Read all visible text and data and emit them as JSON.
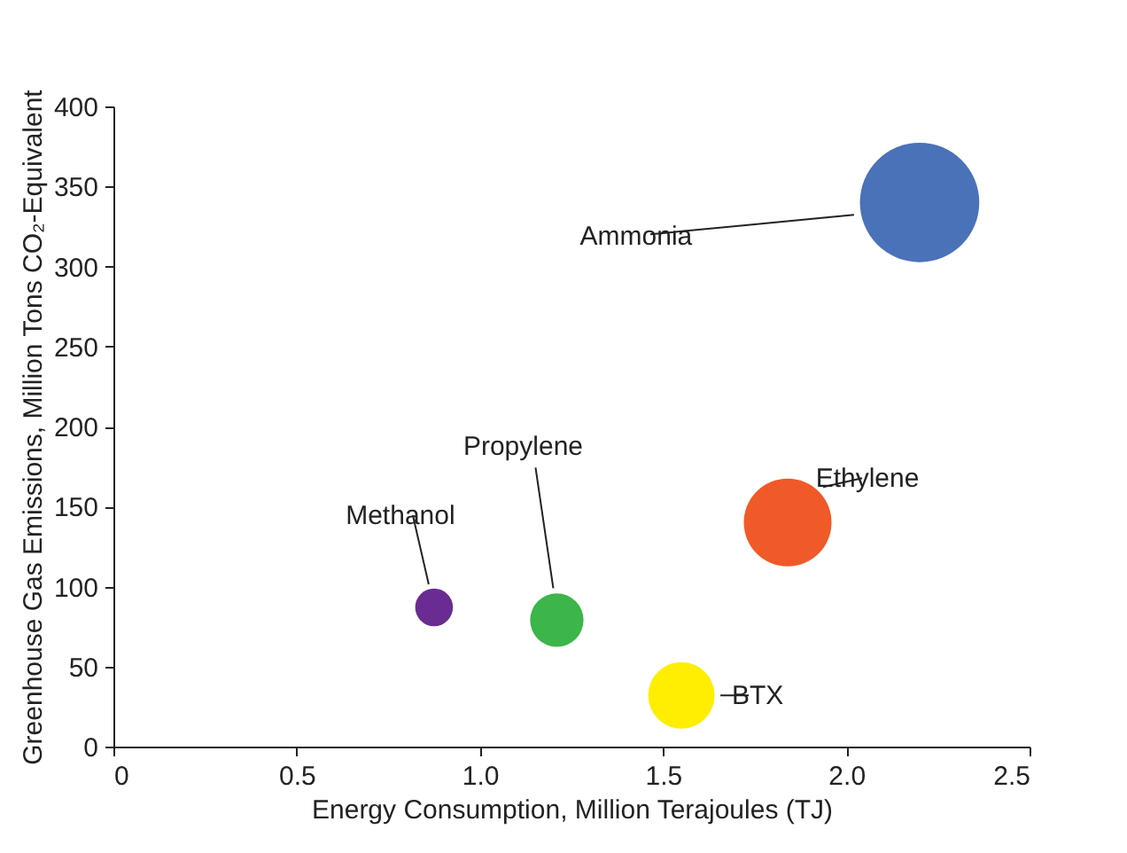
{
  "chart_data": {
    "type": "bubble",
    "xlabel": "Energy Consumption, Million Terajoules (TJ)",
    "ylabel": "Greenhouse Gas Emissions, Million Tons CO₂-Equivalent",
    "xlim": [
      0,
      2.5
    ],
    "xticks": [
      0,
      {
        "value": 0.5,
        "label": "0.5"
      },
      {
        "value": 1,
        "label": "1.0"
      },
      {
        "value": 1.5,
        "label": "1.5"
      },
      {
        "value": 2,
        "label": "2.0"
      },
      {
        "value": 2.5,
        "label": "2.5"
      }
    ],
    "ylim": [
      0,
      400
    ],
    "yticks": [
      0,
      50,
      100,
      150,
      200,
      250,
      300,
      350,
      400
    ],
    "grid": false,
    "series": [
      {
        "name": "Ammonia",
        "color": "#4a72b8",
        "x": [
          2.2
        ],
        "values": [
          340
        ],
        "sizes": [
          1
        ]
      },
      {
        "name": "Ethylene",
        "color": "#f05a28",
        "x": [
          1.84
        ],
        "values": [
          140
        ],
        "sizes": [
          0.54
        ]
      },
      {
        "name": "BTX",
        "color": "#ffee00",
        "x": [
          1.55
        ],
        "values": [
          32
        ],
        "sizes": [
          0.31
        ]
      },
      {
        "name": "Propylene",
        "color": "#3cb54a",
        "x": [
          1.21
        ],
        "values": [
          79
        ],
        "sizes": [
          0.2
        ]
      },
      {
        "name": "Methanol",
        "color": "#6a2c91",
        "x": [
          0.875
        ],
        "values": [
          87
        ],
        "sizes": [
          0.1
        ]
      }
    ]
  }
}
